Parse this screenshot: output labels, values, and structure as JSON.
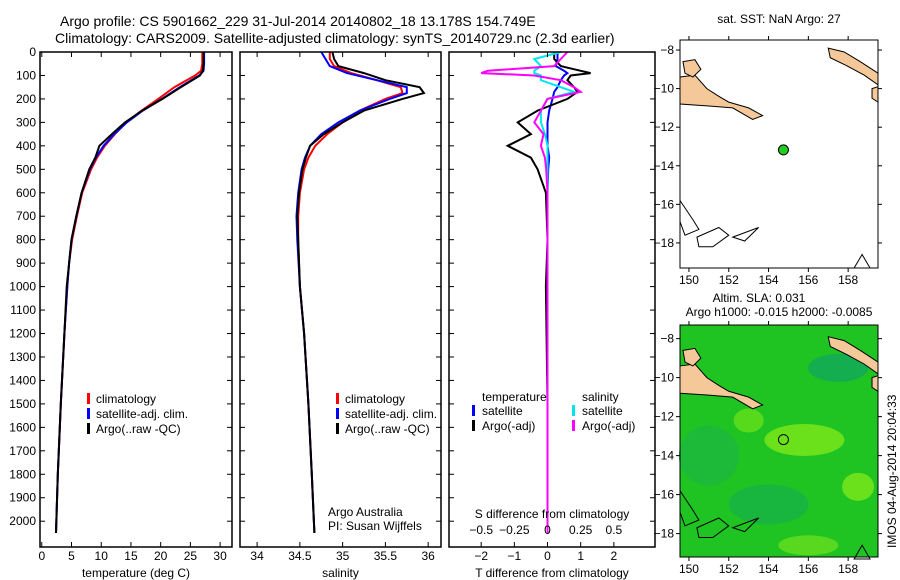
{
  "titles": {
    "line1": "Argo profile: CS 5901662_229 31-Jul-2014 20140802_18 13.178S 154.749E",
    "line2": "Climatology: CARS2009. Satellite-adjusted climatology: synTS_20140729.nc (2.3d earlier)"
  },
  "colors": {
    "clim": "#ff0000",
    "sat": "#0000ff",
    "argo": "#000000",
    "sal_sat": "#00e5ee",
    "sal_argo": "#ff00ff",
    "land": "#f5c89a",
    "ocean": "#22c81e"
  },
  "chart_data": [
    {
      "type": "line",
      "id": "temperature",
      "xlabel": "temperature (deg C)",
      "ylabel": "depth",
      "xlim": [
        -0.3,
        32
      ],
      "ylim": [
        0,
        2110
      ],
      "xticks": [
        0,
        5,
        10,
        15,
        20,
        25,
        30
      ],
      "yticks": [
        0,
        100,
        200,
        300,
        400,
        500,
        600,
        700,
        800,
        900,
        1000,
        1100,
        1200,
        1300,
        1400,
        1500,
        1600,
        1700,
        1800,
        1900,
        2000
      ],
      "legend": [
        "climatology",
        "satellite-adj. clim.",
        "Argo(..raw -QC)"
      ],
      "depth": [
        0,
        50,
        80,
        100,
        150,
        200,
        250,
        300,
        350,
        400,
        450,
        500,
        600,
        700,
        800,
        900,
        1000,
        1200,
        1500,
        1800,
        2050
      ],
      "series": [
        {
          "name": "climatology",
          "color": "clim",
          "values": [
            27,
            27,
            26.8,
            25.8,
            22.3,
            19.6,
            16.8,
            14.2,
            12.3,
            10.6,
            9.3,
            8.3,
            6.8,
            5.9,
            5.1,
            4.6,
            4.3,
            3.8,
            3.2,
            2.7,
            2.4
          ]
        },
        {
          "name": "satellite-adj. clim.",
          "color": "sat",
          "values": [
            27.3,
            27.3,
            27.2,
            26.5,
            23.2,
            20.2,
            17,
            14.3,
            12.2,
            10.4,
            9.1,
            8.1,
            6.7,
            5.8,
            5.0,
            4.6,
            4.3,
            3.8,
            3.2,
            2.7,
            2.4
          ]
        },
        {
          "name": "Argo(..raw -QC)",
          "color": "argo",
          "values": [
            27.2,
            27.2,
            27.1,
            26.6,
            23.4,
            20.3,
            16.9,
            14.0,
            11.8,
            9.7,
            9.0,
            8.0,
            6.7,
            5.8,
            5.0,
            4.6,
            4.2,
            3.8,
            3.2,
            2.7,
            2.4
          ]
        }
      ]
    },
    {
      "type": "line",
      "id": "salinity",
      "xlabel": "salinity",
      "ylabel": "depth",
      "xlim": [
        33.8,
        36.15
      ],
      "ylim": [
        0,
        2110
      ],
      "xticks": [
        34,
        34.5,
        35,
        35.5,
        36
      ],
      "legend": [
        "climatology",
        "satellite-adj. clim.",
        "Argo(..raw -QC)"
      ],
      "annotation": [
        "Argo Australia",
        "PI: Susan Wijffels"
      ],
      "depth": [
        0,
        30,
        60,
        90,
        120,
        150,
        175,
        200,
        250,
        300,
        350,
        400,
        450,
        500,
        600,
        700,
        800,
        1000,
        1200,
        1500,
        1800,
        2050
      ],
      "series": [
        {
          "name": "climatology",
          "color": "clim",
          "values": [
            34.85,
            34.85,
            34.9,
            35.1,
            35.4,
            35.68,
            35.7,
            35.5,
            35.2,
            35.0,
            34.82,
            34.68,
            34.6,
            34.55,
            34.5,
            34.48,
            34.48,
            34.5,
            34.55,
            34.6,
            34.64,
            34.67
          ]
        },
        {
          "name": "satellite-adj. clim.",
          "color": "sat",
          "values": [
            34.75,
            34.8,
            34.85,
            35.05,
            35.4,
            35.75,
            35.75,
            35.55,
            35.2,
            34.95,
            34.75,
            34.62,
            34.56,
            34.52,
            34.48,
            34.46,
            34.47,
            34.5,
            34.55,
            34.6,
            34.64,
            34.67
          ]
        },
        {
          "name": "Argo(..raw -QC)",
          "color": "argo",
          "values": [
            34.88,
            34.9,
            34.95,
            35.25,
            35.5,
            35.9,
            35.95,
            35.7,
            35.25,
            35.0,
            34.78,
            34.62,
            34.57,
            34.53,
            34.49,
            34.47,
            34.48,
            34.5,
            34.55,
            34.6,
            34.64,
            34.67
          ]
        }
      ]
    },
    {
      "type": "line",
      "id": "difference",
      "xlabel": "T difference from climatology",
      "x2label": "S difference from climatology",
      "xlim": [
        -2.97,
        3.24
      ],
      "ylim": [
        0,
        2110
      ],
      "xticks": [
        -2,
        -1,
        0,
        1,
        2
      ],
      "x2ticks": [
        -0.5,
        -0.25,
        0,
        0.25,
        0.5
      ],
      "x2_scale": 0.25,
      "legend_t_header": "temperature",
      "legend_s_header": "salinity",
      "legend": [
        "satellite",
        "Argo(-adj)",
        "satellite",
        "Argo(-adj)"
      ],
      "depth": [
        0,
        30,
        60,
        80,
        90,
        100,
        120,
        150,
        170,
        200,
        250,
        300,
        350,
        400,
        450,
        500,
        600,
        800,
        1000,
        1500,
        2050
      ],
      "series": [
        {
          "name": "T satellite",
          "color": "sat",
          "values": [
            0.3,
            0.3,
            0.25,
            0.5,
            0.6,
            0.5,
            0.4,
            0.3,
            0.2,
            0.15,
            0.05,
            0,
            0,
            0,
            0.05,
            0.02,
            0,
            0,
            0,
            0,
            0
          ]
        },
        {
          "name": "T Argo(-adj)",
          "color": "argo",
          "values": [
            0.2,
            0.2,
            0.4,
            1.0,
            1.3,
            0.7,
            0.6,
            0.8,
            0.9,
            0.6,
            -0.3,
            -0.9,
            -0.5,
            -1.2,
            -0.5,
            -0.3,
            -0.05,
            0,
            -0.05,
            0,
            0
          ]
        },
        {
          "name": "S satellite",
          "color": "sal_sat",
          "values": [
            0.1,
            -0.1,
            -0.05,
            -0.1,
            -0.1,
            -0.05,
            -0.05,
            0.1,
            0.2,
            0.0,
            -0.05,
            -0.05,
            -0.02,
            0,
            0,
            0,
            0,
            0,
            0,
            0,
            0
          ]
        },
        {
          "name": "S Argo(-adj)",
          "color": "sal_argo",
          "values": [
            0.15,
            0.1,
            0.05,
            -0.45,
            -0.5,
            -0.1,
            0.1,
            0.2,
            0.25,
            0.0,
            -0.05,
            -0.1,
            -0.03,
            -0.05,
            -0.02,
            -0.01,
            0,
            0,
            0,
            0,
            0
          ]
        }
      ]
    }
  ],
  "maps": [
    {
      "id": "sst",
      "title": "sat. SST: NaN Argo: 27",
      "xticks": [
        150,
        152,
        154,
        156,
        158
      ],
      "yticks": [
        -8,
        -10,
        -12,
        -14,
        -16,
        -18
      ],
      "xlim": [
        149.55,
        159.5
      ],
      "ylim": [
        -19.3,
        -7.48
      ],
      "point": [
        154.749,
        -13.178
      ],
      "shaded": false
    },
    {
      "id": "sla",
      "title1": "Altim. SLA: 0.031",
      "title2": "Argo h1000: -0.015 h2000: -0.0085",
      "xticks": [
        150,
        152,
        154,
        156,
        158
      ],
      "yticks": [
        -8,
        -10,
        -12,
        -14,
        -16,
        -18
      ],
      "xlim": [
        149.55,
        159.5
      ],
      "ylim": [
        -19.2,
        -7.3
      ],
      "point": [
        154.749,
        -13.178
      ],
      "shaded": true
    }
  ],
  "footer": "IMOS 04-Aug-2014 20:04:33"
}
